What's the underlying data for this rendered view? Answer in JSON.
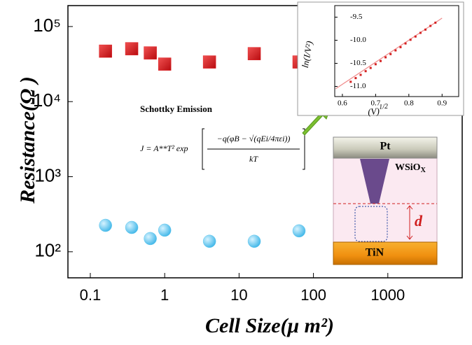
{
  "chart_data": [
    {
      "type": "scatter",
      "log_x": true,
      "log_y": true,
      "x_label": "Cell Size(μ m²)",
      "y_label": "Resistance(Ω )",
      "xlim": [
        0.05,
        10000
      ],
      "ylim": [
        45,
        190000
      ],
      "xticks": [
        0.1,
        1,
        10,
        100,
        1000
      ],
      "yticks": [
        {
          "value": 100,
          "label": "10²"
        },
        {
          "value": 1000,
          "label": "10³"
        },
        {
          "value": 10000,
          "label": "10⁴"
        },
        {
          "value": 100000,
          "label": "10⁵"
        }
      ],
      "series": [
        {
          "color": "#e0191e",
          "marker": "square",
          "x": [
            0.16,
            0.36,
            0.64,
            1,
            4,
            16,
            64
          ],
          "values": [
            47000,
            50600,
            44500,
            31600,
            33700,
            43500,
            33700
          ]
        },
        {
          "color": "#5cc6ee",
          "marker": "circle",
          "x": [
            0.16,
            0.36,
            0.64,
            1,
            4,
            16,
            64
          ],
          "values": [
            225,
            211,
            150,
            194,
            138,
            138,
            190
          ]
        }
      ],
      "annotations": {
        "equation_title": "Schottky Emission",
        "equation_lhs": "J = A**T² exp",
        "equation_numerator": "−q(φB − √(qEi/4πεi))",
        "equation_denominator": "kT",
        "top_electrode": "Pt",
        "oxide": "WSiO",
        "oxide_sub": "X",
        "bottom_electrode": "TiN",
        "gap": "d"
      }
    },
    {
      "type": "scatter",
      "y_label": "ln(I/V²)",
      "x_label": "(V)",
      "x_label_sup": "1/2",
      "xlim": [
        0.577,
        0.95
      ],
      "ylim": [
        -11.22,
        -9.25
      ],
      "xticks": [
        0.6,
        0.7,
        0.8,
        0.9
      ],
      "yticks": [
        {
          "value": -11,
          "label": "-11.0"
        },
        -10.5,
        {
          "value": -10,
          "label": "-10.0"
        },
        -9.5
      ],
      "series": [
        {
          "color": "#d42020",
          "marker": "dot",
          "x": [
            0.625,
            0.64,
            0.655,
            0.67,
            0.685,
            0.7,
            0.715,
            0.73,
            0.745,
            0.76,
            0.775,
            0.79,
            0.805,
            0.82,
            0.835,
            0.85,
            0.865,
            0.88
          ],
          "values": [
            -10.9,
            -10.82,
            -10.75,
            -10.67,
            -10.6,
            -10.52,
            -10.45,
            -10.37,
            -10.3,
            -10.22,
            -10.15,
            -10.07,
            -9.99,
            -9.92,
            -9.84,
            -9.77,
            -9.69,
            -9.62
          ]
        }
      ],
      "fit": {
        "color": "#f08a8a",
        "x": [
          0.58,
          0.9
        ],
        "values": [
          -11.05,
          -9.52
        ]
      }
    }
  ]
}
